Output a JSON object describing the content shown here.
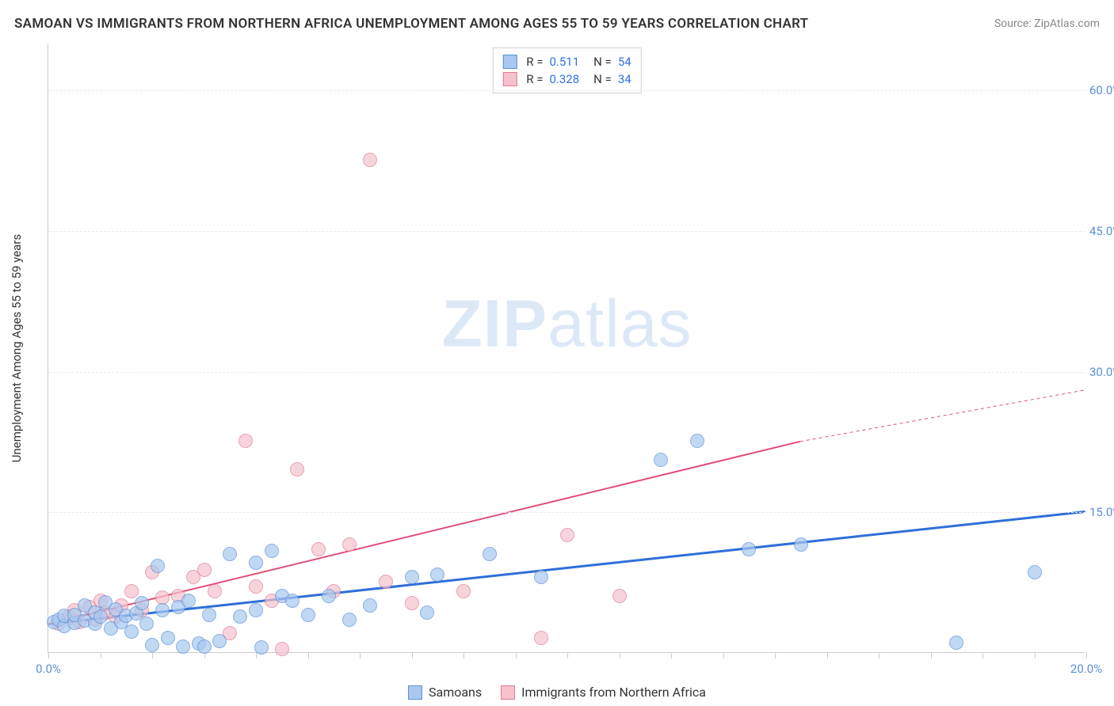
{
  "title": "SAMOAN VS IMMIGRANTS FROM NORTHERN AFRICA UNEMPLOYMENT AMONG AGES 55 TO 59 YEARS CORRELATION CHART",
  "source": "Source: ZipAtlas.com",
  "watermark_bold": "ZIP",
  "watermark_rest": "atlas",
  "ylabel": "Unemployment Among Ages 55 to 59 years",
  "chart": {
    "type": "scatter",
    "xmin": 0,
    "xmax": 20,
    "ymin": 0,
    "ymax": 65,
    "yticks": [
      15,
      30,
      45,
      60
    ],
    "ytick_labels": [
      "15.0%",
      "30.0%",
      "45.0%",
      "60.0%"
    ],
    "xticks": [
      0,
      1,
      2,
      3,
      4,
      5,
      6,
      7,
      8,
      9,
      10,
      11,
      12,
      13,
      14,
      15,
      16,
      17,
      18,
      19,
      20
    ],
    "xtick_labels": {
      "0": "0.0%",
      "20": "20.0%"
    },
    "point_radius": 9,
    "point_opacity": 0.7,
    "point_border_width": 1,
    "background_color": "#ffffff",
    "grid_color": "#e8e8e8",
    "series": {
      "samoans": {
        "label": "Samoans",
        "fill": "#a8c8ef",
        "stroke": "#5b8fd6",
        "trend_color": "#2e6fd8",
        "trend_width": 3,
        "trend": {
          "x1": 0,
          "y1": 3.0,
          "x2": 20,
          "y2": 15.0
        },
        "r": "0.511",
        "n": "54",
        "points": [
          [
            0.1,
            3.2
          ],
          [
            0.2,
            3.5
          ],
          [
            0.3,
            2.8
          ],
          [
            0.3,
            3.9
          ],
          [
            0.5,
            3.1
          ],
          [
            0.5,
            4.0
          ],
          [
            0.7,
            3.4
          ],
          [
            0.7,
            5.0
          ],
          [
            0.9,
            3.0
          ],
          [
            0.9,
            4.2
          ],
          [
            1.0,
            3.8
          ],
          [
            1.1,
            5.3
          ],
          [
            1.2,
            2.5
          ],
          [
            1.3,
            4.6
          ],
          [
            1.4,
            3.2
          ],
          [
            1.5,
            3.9
          ],
          [
            1.6,
            2.2
          ],
          [
            1.7,
            4.1
          ],
          [
            1.8,
            5.2
          ],
          [
            1.9,
            3.0
          ],
          [
            2.0,
            0.8
          ],
          [
            2.1,
            9.2
          ],
          [
            2.2,
            4.5
          ],
          [
            2.3,
            1.5
          ],
          [
            2.5,
            4.8
          ],
          [
            2.6,
            0.6
          ],
          [
            2.7,
            5.5
          ],
          [
            2.9,
            0.9
          ],
          [
            3.0,
            0.6
          ],
          [
            3.1,
            4.0
          ],
          [
            3.3,
            1.2
          ],
          [
            3.5,
            10.5
          ],
          [
            3.7,
            3.8
          ],
          [
            4.0,
            4.5
          ],
          [
            4.0,
            9.5
          ],
          [
            4.1,
            0.5
          ],
          [
            4.3,
            10.8
          ],
          [
            4.5,
            6.0
          ],
          [
            4.7,
            5.5
          ],
          [
            5.0,
            4.0
          ],
          [
            5.4,
            6.0
          ],
          [
            5.8,
            3.5
          ],
          [
            6.2,
            5.0
          ],
          [
            7.0,
            8.0
          ],
          [
            7.3,
            4.2
          ],
          [
            7.5,
            8.3
          ],
          [
            8.5,
            10.5
          ],
          [
            9.5,
            8.0
          ],
          [
            11.8,
            20.5
          ],
          [
            12.5,
            22.5
          ],
          [
            13.5,
            11.0
          ],
          [
            14.5,
            11.5
          ],
          [
            17.5,
            1.0
          ],
          [
            19.0,
            8.5
          ]
        ]
      },
      "immigrants": {
        "label": "Immigrants from Northern Africa",
        "fill": "#f5c2cd",
        "stroke": "#e27893",
        "trend_color": "#e04d77",
        "trend_width": 2,
        "trend": {
          "x1": 0,
          "y1": 3.0,
          "x2": 14.5,
          "y2": 22.5
        },
        "trend_dash_from_x": 14.5,
        "trend_dash_to": {
          "x": 20,
          "y": 28
        },
        "r": "0.328",
        "n": "34",
        "points": [
          [
            0.2,
            3.0
          ],
          [
            0.4,
            3.8
          ],
          [
            0.5,
            4.5
          ],
          [
            0.6,
            3.2
          ],
          [
            0.8,
            4.8
          ],
          [
            0.9,
            3.5
          ],
          [
            1.0,
            5.5
          ],
          [
            1.1,
            4.2
          ],
          [
            1.3,
            3.8
          ],
          [
            1.4,
            5.0
          ],
          [
            1.6,
            6.5
          ],
          [
            1.8,
            4.5
          ],
          [
            2.0,
            8.5
          ],
          [
            2.2,
            5.8
          ],
          [
            2.5,
            6.0
          ],
          [
            2.8,
            8.0
          ],
          [
            3.0,
            8.8
          ],
          [
            3.2,
            6.5
          ],
          [
            3.5,
            2.0
          ],
          [
            3.8,
            22.5
          ],
          [
            4.0,
            7.0
          ],
          [
            4.3,
            5.5
          ],
          [
            4.5,
            0.3
          ],
          [
            4.8,
            19.5
          ],
          [
            5.2,
            11.0
          ],
          [
            5.5,
            6.5
          ],
          [
            5.8,
            11.5
          ],
          [
            6.2,
            52.5
          ],
          [
            6.5,
            7.5
          ],
          [
            7.0,
            5.2
          ],
          [
            8.0,
            6.5
          ],
          [
            9.5,
            1.5
          ],
          [
            10.0,
            12.5
          ],
          [
            11.0,
            6.0
          ]
        ]
      }
    }
  },
  "colors": {
    "title_color": "#333333",
    "source_color": "#888888",
    "axis_label_color": "#5b8fd6",
    "value_color": "#3070e0"
  }
}
